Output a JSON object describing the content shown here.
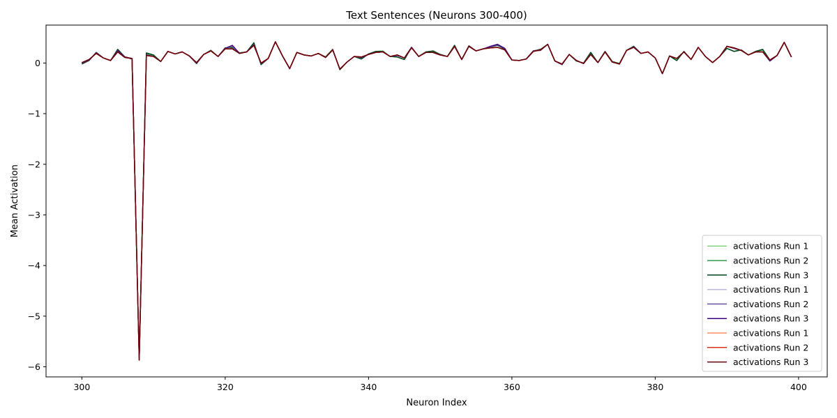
{
  "chart_data": {
    "type": "line",
    "title": "Text Sentences (Neurons 300-400)",
    "xlabel": "Neuron Index",
    "ylabel": "Mean Activation",
    "xlim": [
      295,
      404
    ],
    "ylim": [
      -6.2,
      0.75
    ],
    "xticks": [
      300,
      320,
      340,
      360,
      380,
      400
    ],
    "yticks": [
      -6,
      -5,
      -4,
      -3,
      -2,
      -1,
      0
    ],
    "grid": false,
    "legend_position": "bottom-right",
    "x": [
      300,
      301,
      302,
      303,
      304,
      305,
      306,
      307,
      308,
      309,
      310,
      311,
      312,
      313,
      314,
      315,
      316,
      317,
      318,
      319,
      320,
      321,
      322,
      323,
      324,
      325,
      326,
      327,
      328,
      329,
      330,
      331,
      332,
      333,
      334,
      335,
      336,
      337,
      338,
      339,
      340,
      341,
      342,
      343,
      344,
      345,
      346,
      347,
      348,
      349,
      350,
      351,
      352,
      353,
      354,
      355,
      356,
      357,
      358,
      359,
      360,
      361,
      362,
      363,
      364,
      365,
      366,
      367,
      368,
      369,
      370,
      371,
      372,
      373,
      374,
      375,
      376,
      377,
      378,
      379,
      380,
      381,
      382,
      383,
      384,
      385,
      386,
      387,
      388,
      389,
      390,
      391,
      392,
      393,
      394,
      395,
      396,
      397,
      398,
      399
    ],
    "series": [
      {
        "name": "activations Run 1",
        "color": "#86d17f",
        "values": [
          -0.01,
          0.05,
          0.2,
          0.1,
          0.05,
          0.26,
          0.12,
          0.08,
          -5.85,
          0.18,
          0.14,
          0.03,
          0.23,
          0.18,
          0.22,
          0.14,
          -0.01,
          0.17,
          0.25,
          0.13,
          0.3,
          0.3,
          0.2,
          0.22,
          0.39,
          -0.03,
          0.09,
          0.42,
          0.14,
          -0.11,
          0.21,
          0.16,
          0.14,
          0.19,
          0.12,
          0.27,
          -0.13,
          0.02,
          0.13,
          0.08,
          0.18,
          0.23,
          0.24,
          0.13,
          0.12,
          0.07,
          0.31,
          0.13,
          0.22,
          0.23,
          0.17,
          0.13,
          0.35,
          0.07,
          0.34,
          0.24,
          0.28,
          0.31,
          0.35,
          0.28,
          0.06,
          0.05,
          0.08,
          0.23,
          0.27,
          0.37,
          0.04,
          -0.02,
          0.17,
          0.04,
          0.0,
          0.2,
          0.01,
          0.23,
          0.03,
          -0.01,
          0.25,
          0.33,
          0.19,
          0.22,
          0.1,
          -0.21,
          0.14,
          0.05,
          0.23,
          0.07,
          0.31,
          0.13,
          0.01,
          0.13,
          0.29,
          0.23,
          0.26,
          0.16,
          0.23,
          0.26,
          0.06,
          0.15,
          0.4,
          0.12
        ]
      },
      {
        "name": "activations Run 2",
        "color": "#2e9b4f",
        "values": [
          -0.01,
          0.05,
          0.21,
          0.1,
          0.05,
          0.27,
          0.12,
          0.08,
          -5.85,
          0.19,
          0.15,
          0.03,
          0.23,
          0.18,
          0.22,
          0.14,
          -0.01,
          0.17,
          0.25,
          0.13,
          0.3,
          0.31,
          0.2,
          0.22,
          0.4,
          -0.03,
          0.09,
          0.42,
          0.14,
          -0.11,
          0.21,
          0.16,
          0.14,
          0.19,
          0.12,
          0.27,
          -0.13,
          0.02,
          0.13,
          0.08,
          0.18,
          0.23,
          0.23,
          0.13,
          0.12,
          0.07,
          0.31,
          0.13,
          0.22,
          0.23,
          0.17,
          0.13,
          0.35,
          0.07,
          0.34,
          0.24,
          0.28,
          0.32,
          0.35,
          0.28,
          0.06,
          0.05,
          0.08,
          0.24,
          0.27,
          0.37,
          0.04,
          -0.02,
          0.17,
          0.04,
          0.0,
          0.21,
          0.01,
          0.23,
          0.03,
          -0.01,
          0.25,
          0.33,
          0.19,
          0.22,
          0.1,
          -0.21,
          0.14,
          0.05,
          0.23,
          0.07,
          0.31,
          0.13,
          0.01,
          0.13,
          0.29,
          0.23,
          0.26,
          0.16,
          0.23,
          0.26,
          0.06,
          0.15,
          0.41,
          0.12
        ]
      },
      {
        "name": "activations Run 3",
        "color": "#00441b",
        "values": [
          -0.02,
          0.05,
          0.21,
          0.1,
          0.05,
          0.27,
          0.12,
          0.08,
          -5.86,
          0.2,
          0.16,
          0.03,
          0.23,
          0.18,
          0.22,
          0.14,
          -0.01,
          0.17,
          0.25,
          0.13,
          0.3,
          0.31,
          0.2,
          0.22,
          0.4,
          -0.03,
          0.09,
          0.42,
          0.14,
          -0.11,
          0.21,
          0.16,
          0.14,
          0.19,
          0.12,
          0.27,
          -0.13,
          0.02,
          0.13,
          0.08,
          0.18,
          0.23,
          0.23,
          0.13,
          0.12,
          0.07,
          0.31,
          0.13,
          0.22,
          0.24,
          0.17,
          0.13,
          0.35,
          0.07,
          0.34,
          0.24,
          0.28,
          0.32,
          0.35,
          0.28,
          0.06,
          0.05,
          0.08,
          0.24,
          0.27,
          0.37,
          0.04,
          -0.02,
          0.17,
          0.04,
          0.0,
          0.21,
          0.01,
          0.23,
          0.03,
          -0.01,
          0.25,
          0.33,
          0.19,
          0.22,
          0.1,
          -0.21,
          0.14,
          0.05,
          0.23,
          0.07,
          0.31,
          0.13,
          0.01,
          0.13,
          0.29,
          0.23,
          0.26,
          0.16,
          0.23,
          0.27,
          0.06,
          0.15,
          0.41,
          0.12
        ]
      },
      {
        "name": "activations Run 1",
        "color": "#bcb6df",
        "values": [
          0.0,
          0.06,
          0.2,
          0.1,
          0.05,
          0.24,
          0.12,
          0.09,
          -5.83,
          0.16,
          0.13,
          0.03,
          0.23,
          0.18,
          0.22,
          0.14,
          0.0,
          0.17,
          0.24,
          0.13,
          0.29,
          0.33,
          0.19,
          0.22,
          0.36,
          -0.01,
          0.09,
          0.42,
          0.14,
          -0.11,
          0.21,
          0.16,
          0.14,
          0.19,
          0.11,
          0.26,
          -0.12,
          0.02,
          0.13,
          0.11,
          0.17,
          0.21,
          0.22,
          0.13,
          0.15,
          0.1,
          0.31,
          0.13,
          0.21,
          0.21,
          0.16,
          0.13,
          0.33,
          0.07,
          0.33,
          0.24,
          0.28,
          0.32,
          0.36,
          0.29,
          0.06,
          0.05,
          0.08,
          0.24,
          0.26,
          0.37,
          0.04,
          -0.03,
          0.17,
          0.05,
          -0.01,
          0.17,
          0.01,
          0.22,
          0.02,
          -0.02,
          0.25,
          0.32,
          0.19,
          0.22,
          0.1,
          -0.21,
          0.14,
          0.09,
          0.22,
          0.07,
          0.31,
          0.13,
          0.01,
          0.13,
          0.33,
          0.29,
          0.25,
          0.16,
          0.22,
          0.22,
          0.05,
          0.15,
          0.41,
          0.12
        ]
      },
      {
        "name": "activations Run 2",
        "color": "#6a51a3",
        "values": [
          0.0,
          0.06,
          0.2,
          0.1,
          0.05,
          0.24,
          0.12,
          0.09,
          -5.84,
          0.16,
          0.13,
          0.03,
          0.23,
          0.18,
          0.22,
          0.14,
          0.0,
          0.17,
          0.24,
          0.13,
          0.29,
          0.34,
          0.19,
          0.22,
          0.36,
          -0.01,
          0.09,
          0.42,
          0.14,
          -0.11,
          0.21,
          0.16,
          0.14,
          0.19,
          0.11,
          0.26,
          -0.12,
          0.02,
          0.13,
          0.11,
          0.17,
          0.21,
          0.22,
          0.13,
          0.15,
          0.1,
          0.31,
          0.13,
          0.21,
          0.21,
          0.16,
          0.13,
          0.33,
          0.07,
          0.33,
          0.24,
          0.28,
          0.32,
          0.36,
          0.29,
          0.06,
          0.05,
          0.08,
          0.24,
          0.26,
          0.37,
          0.04,
          -0.03,
          0.17,
          0.05,
          -0.01,
          0.17,
          0.01,
          0.22,
          0.02,
          -0.02,
          0.25,
          0.32,
          0.19,
          0.22,
          0.1,
          -0.21,
          0.14,
          0.09,
          0.22,
          0.07,
          0.31,
          0.13,
          0.01,
          0.13,
          0.33,
          0.29,
          0.25,
          0.16,
          0.22,
          0.22,
          0.04,
          0.15,
          0.41,
          0.12
        ]
      },
      {
        "name": "activations Run 3",
        "color": "#3f007d",
        "values": [
          0.0,
          0.06,
          0.2,
          0.1,
          0.05,
          0.24,
          0.12,
          0.09,
          -5.84,
          0.16,
          0.13,
          0.03,
          0.23,
          0.18,
          0.22,
          0.14,
          0.0,
          0.17,
          0.24,
          0.13,
          0.29,
          0.35,
          0.19,
          0.22,
          0.36,
          -0.01,
          0.09,
          0.42,
          0.14,
          -0.11,
          0.21,
          0.16,
          0.14,
          0.19,
          0.11,
          0.26,
          -0.12,
          0.02,
          0.13,
          0.11,
          0.17,
          0.21,
          0.22,
          0.13,
          0.15,
          0.1,
          0.31,
          0.13,
          0.21,
          0.21,
          0.16,
          0.13,
          0.33,
          0.07,
          0.33,
          0.24,
          0.28,
          0.33,
          0.37,
          0.29,
          0.06,
          0.05,
          0.08,
          0.24,
          0.25,
          0.37,
          0.04,
          -0.03,
          0.17,
          0.05,
          -0.01,
          0.17,
          0.01,
          0.22,
          0.02,
          -0.02,
          0.25,
          0.32,
          0.19,
          0.22,
          0.1,
          -0.21,
          0.14,
          0.09,
          0.22,
          0.07,
          0.31,
          0.13,
          0.01,
          0.13,
          0.33,
          0.29,
          0.25,
          0.16,
          0.22,
          0.22,
          0.04,
          0.15,
          0.41,
          0.12
        ]
      },
      {
        "name": "activations Run 1",
        "color": "#fc8d59",
        "values": [
          0.01,
          0.07,
          0.19,
          0.1,
          0.05,
          0.22,
          0.11,
          0.09,
          -5.86,
          0.15,
          0.13,
          0.03,
          0.23,
          0.18,
          0.22,
          0.14,
          0.01,
          0.17,
          0.24,
          0.13,
          0.28,
          0.28,
          0.19,
          0.22,
          0.35,
          0.0,
          0.09,
          0.42,
          0.14,
          -0.11,
          0.21,
          0.16,
          0.14,
          0.19,
          0.11,
          0.26,
          -0.12,
          0.02,
          0.13,
          0.12,
          0.17,
          0.21,
          0.22,
          0.13,
          0.16,
          0.1,
          0.3,
          0.13,
          0.21,
          0.21,
          0.16,
          0.13,
          0.33,
          0.07,
          0.33,
          0.24,
          0.28,
          0.3,
          0.31,
          0.26,
          0.06,
          0.05,
          0.08,
          0.23,
          0.26,
          0.37,
          0.04,
          -0.02,
          0.17,
          0.05,
          -0.01,
          0.17,
          0.01,
          0.22,
          0.02,
          -0.02,
          0.25,
          0.31,
          0.19,
          0.22,
          0.1,
          -0.21,
          0.14,
          0.09,
          0.22,
          0.07,
          0.31,
          0.13,
          0.01,
          0.13,
          0.33,
          0.3,
          0.25,
          0.16,
          0.22,
          0.22,
          0.06,
          0.15,
          0.41,
          0.12
        ]
      },
      {
        "name": "activations Run 2",
        "color": "#d7301f",
        "values": [
          0.01,
          0.07,
          0.19,
          0.1,
          0.05,
          0.22,
          0.11,
          0.09,
          -5.87,
          0.15,
          0.13,
          0.03,
          0.23,
          0.18,
          0.22,
          0.14,
          0.01,
          0.17,
          0.24,
          0.13,
          0.28,
          0.28,
          0.19,
          0.22,
          0.35,
          0.0,
          0.09,
          0.42,
          0.14,
          -0.11,
          0.21,
          0.16,
          0.14,
          0.19,
          0.11,
          0.26,
          -0.12,
          0.02,
          0.13,
          0.12,
          0.17,
          0.21,
          0.22,
          0.13,
          0.16,
          0.1,
          0.3,
          0.13,
          0.21,
          0.21,
          0.16,
          0.13,
          0.33,
          0.07,
          0.33,
          0.24,
          0.28,
          0.3,
          0.31,
          0.26,
          0.06,
          0.05,
          0.08,
          0.23,
          0.26,
          0.37,
          0.04,
          -0.02,
          0.17,
          0.05,
          -0.01,
          0.17,
          0.01,
          0.22,
          0.02,
          -0.02,
          0.25,
          0.31,
          0.19,
          0.22,
          0.1,
          -0.21,
          0.14,
          0.09,
          0.22,
          0.07,
          0.31,
          0.13,
          0.01,
          0.13,
          0.33,
          0.3,
          0.25,
          0.16,
          0.22,
          0.22,
          0.06,
          0.15,
          0.41,
          0.12
        ]
      },
      {
        "name": "activations Run 3",
        "color": "#67000d",
        "values": [
          0.01,
          0.07,
          0.19,
          0.1,
          0.05,
          0.22,
          0.11,
          0.09,
          -5.87,
          0.15,
          0.13,
          0.03,
          0.23,
          0.18,
          0.22,
          0.14,
          0.01,
          0.17,
          0.24,
          0.13,
          0.28,
          0.28,
          0.19,
          0.22,
          0.35,
          0.0,
          0.09,
          0.42,
          0.14,
          -0.11,
          0.21,
          0.16,
          0.14,
          0.19,
          0.11,
          0.26,
          -0.12,
          0.02,
          0.13,
          0.12,
          0.17,
          0.21,
          0.22,
          0.13,
          0.16,
          0.1,
          0.3,
          0.13,
          0.21,
          0.21,
          0.16,
          0.13,
          0.33,
          0.07,
          0.33,
          0.24,
          0.28,
          0.3,
          0.31,
          0.26,
          0.06,
          0.05,
          0.08,
          0.23,
          0.26,
          0.37,
          0.04,
          -0.02,
          0.17,
          0.05,
          -0.01,
          0.17,
          0.01,
          0.22,
          0.02,
          -0.02,
          0.25,
          0.31,
          0.19,
          0.22,
          0.1,
          -0.21,
          0.14,
          0.09,
          0.22,
          0.07,
          0.31,
          0.13,
          0.01,
          0.13,
          0.33,
          0.3,
          0.25,
          0.16,
          0.22,
          0.22,
          0.06,
          0.15,
          0.41,
          0.12
        ]
      }
    ]
  }
}
